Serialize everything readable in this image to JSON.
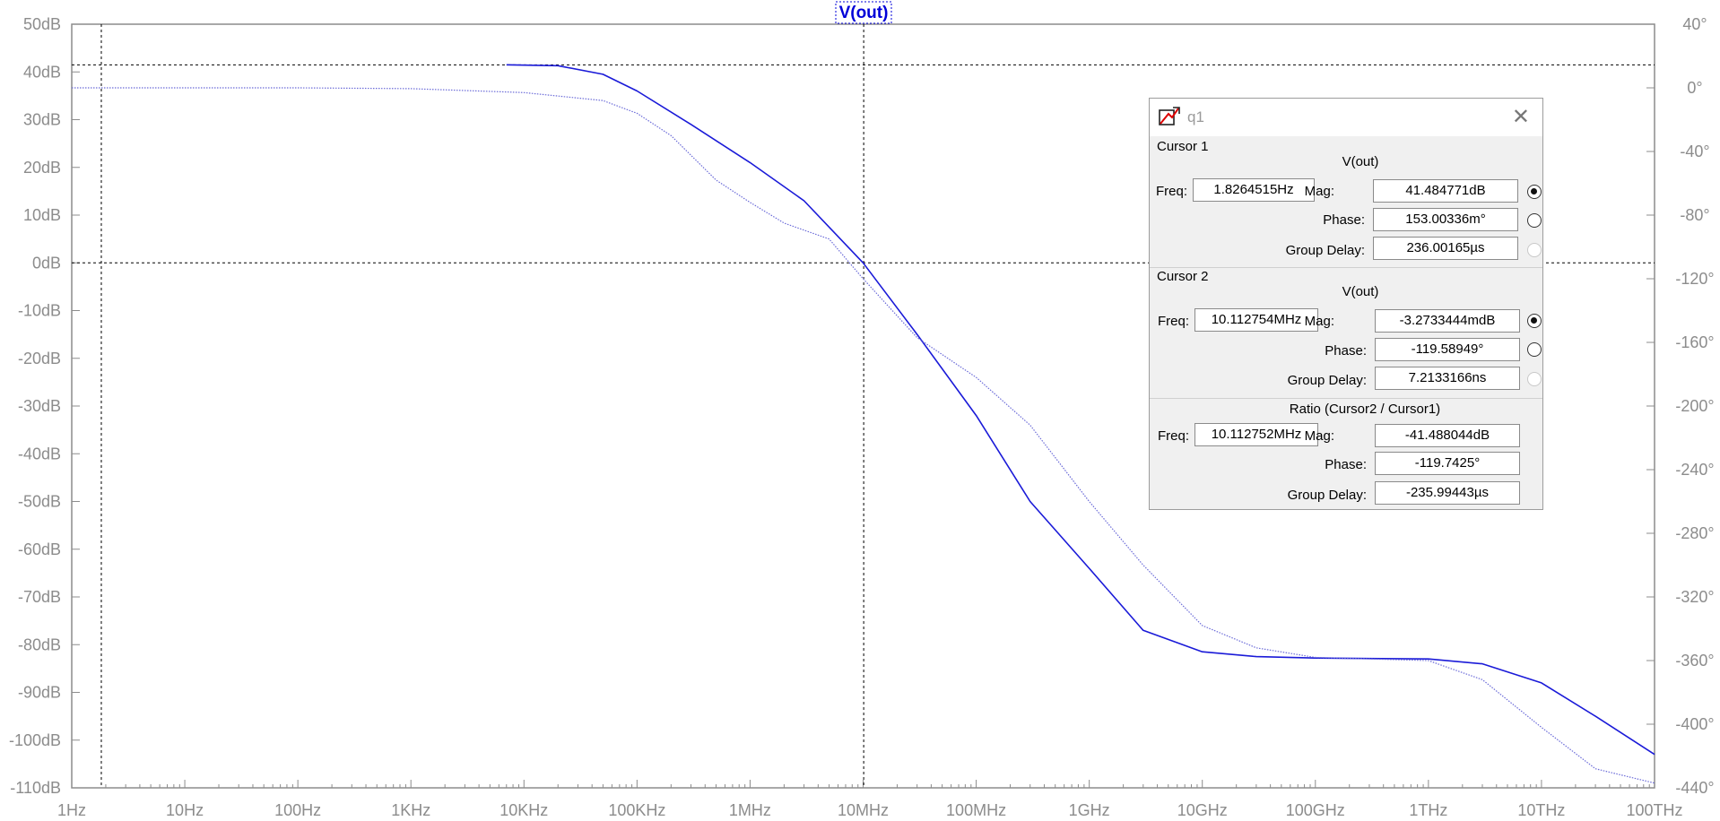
{
  "trace_name": "V(out)",
  "chart_data": {
    "type": "line",
    "title": "V(out)",
    "x_scale": "log",
    "x_ticks": [
      "1Hz",
      "10Hz",
      "100Hz",
      "1KHz",
      "10KHz",
      "100KHz",
      "1MHz",
      "10MHz",
      "100MHz",
      "1GHz",
      "10GHz",
      "100GHz",
      "1THz",
      "10THz",
      "100THz"
    ],
    "x_range_hz": [
      1,
      100000000000000.0
    ],
    "y_left_ticks": [
      "50dB",
      "40dB",
      "30dB",
      "20dB",
      "10dB",
      "0dB",
      "-10dB",
      "-20dB",
      "-30dB",
      "-40dB",
      "-50dB",
      "-60dB",
      "-70dB",
      "-80dB",
      "-90dB",
      "-100dB",
      "-110dB"
    ],
    "y_left_range_db": [
      -110,
      50
    ],
    "y_right_ticks": [
      "40°",
      "0°",
      "-40°",
      "-80°",
      "-120°",
      "-160°",
      "-200°",
      "-240°",
      "-280°",
      "-320°",
      "-360°",
      "-400°",
      "-440°"
    ],
    "y_right_range_deg": [
      -440,
      40
    ],
    "series": [
      {
        "kind": "magnitude",
        "style": "solid",
        "color": "#1a1ad8",
        "points": [
          [
            7000.0,
            41.5
          ],
          [
            20000.0,
            41.3
          ],
          [
            50000.0,
            39.5
          ],
          [
            100000.0,
            36
          ],
          [
            300000.0,
            29
          ],
          [
            1000000.0,
            21
          ],
          [
            3000000.0,
            13
          ],
          [
            10000000.0,
            0
          ],
          [
            30000000.0,
            -15
          ],
          [
            100000000.0,
            -32
          ],
          [
            300000000.0,
            -50
          ],
          [
            1000000000.0,
            -64
          ],
          [
            3000000000.0,
            -77
          ],
          [
            10000000000.0,
            -81.5
          ],
          [
            30000000000.0,
            -82.5
          ],
          [
            100000000000.0,
            -82.8
          ],
          [
            1000000000000.0,
            -83
          ],
          [
            3000000000000.0,
            -84
          ],
          [
            10000000000000.0,
            -88
          ],
          [
            30000000000000.0,
            -95
          ],
          [
            100000000000000.0,
            -103
          ]
        ]
      },
      {
        "kind": "phase",
        "style": "dotted",
        "color": "#6b6bd8",
        "points": [
          [
            1,
            0
          ],
          [
            100.0,
            0
          ],
          [
            1000.0,
            -0.5
          ],
          [
            10000.0,
            -3
          ],
          [
            50000.0,
            -8
          ],
          [
            100000.0,
            -16
          ],
          [
            200000.0,
            -30
          ],
          [
            500000.0,
            -58
          ],
          [
            1000000.0,
            -72
          ],
          [
            2000000.0,
            -85
          ],
          [
            5000000.0,
            -95
          ],
          [
            10000000.0,
            -120
          ],
          [
            30000000.0,
            -157
          ],
          [
            100000000.0,
            -182
          ],
          [
            300000000.0,
            -212
          ],
          [
            1000000000.0,
            -260
          ],
          [
            3000000000.0,
            -300
          ],
          [
            10000000000.0,
            -338
          ],
          [
            30000000000.0,
            -352
          ],
          [
            100000000000.0,
            -358
          ],
          [
            1000000000000.0,
            -360
          ],
          [
            3000000000000.0,
            -372
          ],
          [
            10000000000000.0,
            -402
          ],
          [
            30000000000000.0,
            -428
          ],
          [
            100000000000000.0,
            -437
          ]
        ]
      }
    ],
    "cursors": {
      "cursor1_freq_hz": 1.8264515,
      "cursor2_freq_hz": 10112754,
      "cursor1_mag_db": 41.484771,
      "cursor2_mag_db": -0.0032733444
    }
  },
  "cursor_window": {
    "title": "q1",
    "cursor1": {
      "heading": "Cursor 1",
      "trace": "V(out)",
      "freq_label": "Freq:",
      "freq": "1.8264515Hz",
      "mag_label": "Mag:",
      "mag": "41.484771dB",
      "phase_label": "Phase:",
      "phase": "153.00336m°",
      "gd_label": "Group Delay:",
      "gd": "236.00165µs"
    },
    "cursor2": {
      "heading": "Cursor 2",
      "trace": "V(out)",
      "freq_label": "Freq:",
      "freq": "10.112754MHz",
      "mag_label": "Mag:",
      "mag": "-3.2733444mdB",
      "phase_label": "Phase:",
      "phase": "-119.58949°",
      "gd_label": "Group Delay:",
      "gd": "7.2133166ns"
    },
    "ratio": {
      "heading": "Ratio (Cursor2 / Cursor1)",
      "freq_label": "Freq:",
      "freq": "10.112752MHz",
      "mag_label": "Mag:",
      "mag": "-41.488044dB",
      "phase_label": "Phase:",
      "phase": "-119.7425°",
      "gd_label": "Group Delay:",
      "gd": "-235.99443µs"
    }
  }
}
